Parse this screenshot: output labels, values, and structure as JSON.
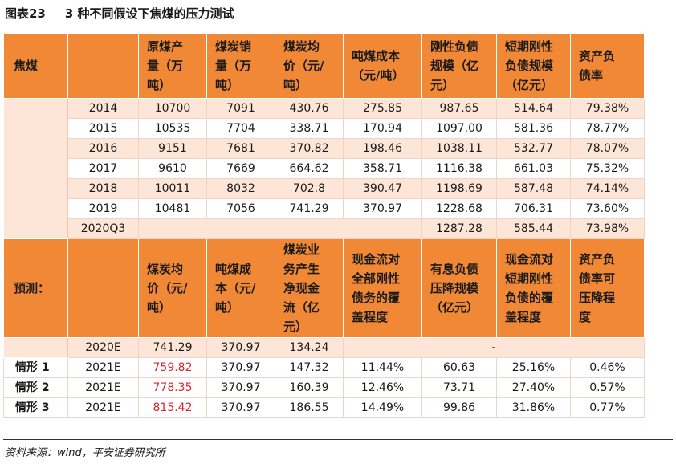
{
  "title": {
    "label": "图表23",
    "text": "3 种不同假设下焦煤的压力测试"
  },
  "history": {
    "section_label": "焦煤",
    "headers": [
      "原煤产\n量（万\n吨）",
      "煤炭销\n量（万\n吨）",
      "煤炭均\n价（元/\n吨）",
      "吨煤成本\n（元/吨）",
      "刚性负债\n规模（亿\n元）",
      "短期刚性\n负债规模\n（亿元）",
      "资产负\n债率"
    ],
    "rows": [
      [
        "2014",
        "10700",
        "7091",
        "430.76",
        "275.85",
        "987.65",
        "514.64",
        "79.38%"
      ],
      [
        "2015",
        "10535",
        "7704",
        "338.71",
        "170.94",
        "1097.00",
        "581.36",
        "78.77%"
      ],
      [
        "2016",
        "9151",
        "7681",
        "370.82",
        "198.46",
        "1038.11",
        "532.77",
        "78.07%"
      ],
      [
        "2017",
        "9610",
        "7669",
        "664.62",
        "358.71",
        "1116.38",
        "661.03",
        "75.32%"
      ],
      [
        "2018",
        "10011",
        "8032",
        "702.8",
        "390.47",
        "1198.69",
        "587.48",
        "74.14%"
      ],
      [
        "2019",
        "10481",
        "7056",
        "741.29",
        "370.97",
        "1228.68",
        "706.31",
        "73.60%"
      ],
      [
        "2020Q3",
        "",
        "",
        "",
        "",
        "1287.28",
        "585.44",
        "73.98%"
      ]
    ]
  },
  "forecast": {
    "section_label": "预测：",
    "headers": [
      "煤炭均\n价（元/\n吨）",
      "吨煤成\n本（元/\n吨）",
      "煤炭业\n务产生\n净现金\n流（亿\n元）",
      "现金流对\n全部刚性\n债务的覆\n盖程度",
      "有息负债\n压降规模\n（亿元）",
      "现金流对\n短期刚性\n负债的覆\n盖程度",
      "资产负\n债率可\n压降程\n度"
    ],
    "base_row": {
      "period": "2020E",
      "values": [
        "741.29",
        "370.97",
        "134.24"
      ],
      "dash": "-"
    },
    "scenarios": [
      {
        "name": "情形 1",
        "period": "2021E",
        "values": [
          "759.82",
          "370.97",
          "147.32",
          "11.44%",
          "60.63",
          "25.16%",
          "0.46%"
        ]
      },
      {
        "name": "情形 2",
        "period": "2021E",
        "values": [
          "778.35",
          "370.97",
          "160.39",
          "12.46%",
          "73.71",
          "27.40%",
          "0.57%"
        ]
      },
      {
        "name": "情形 3",
        "period": "2021E",
        "values": [
          "815.42",
          "370.97",
          "186.55",
          "14.49%",
          "99.86",
          "31.86%",
          "0.77%"
        ]
      }
    ],
    "highlight_color": "#e0262d"
  },
  "colors": {
    "header_orange": "#f08836",
    "row_tint": "#fde6d8"
  },
  "source": "资料来源：wind，平安证券研究所"
}
